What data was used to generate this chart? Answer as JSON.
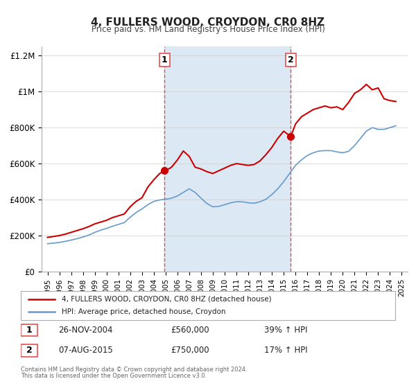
{
  "title": "4, FULLERS WOOD, CROYDON, CR0 8HZ",
  "subtitle": "Price paid vs. HM Land Registry's House Price Index (HPI)",
  "legend_line1": "4, FULLERS WOOD, CROYDON, CR0 8HZ (detached house)",
  "legend_line2": "HPI: Average price, detached house, Croydon",
  "footnote1": "Contains HM Land Registry data © Crown copyright and database right 2024.",
  "footnote2": "This data is licensed under the Open Government Licence v3.0.",
  "sale1_label": "1",
  "sale1_date": "26-NOV-2004",
  "sale1_price": "£560,000",
  "sale1_hpi": "39% ↑ HPI",
  "sale1_x": 2004.9,
  "sale1_y": 560000,
  "sale2_label": "2",
  "sale2_date": "07-AUG-2015",
  "sale2_price": "£750,000",
  "sale2_hpi": "17% ↑ HPI",
  "sale2_x": 2015.6,
  "sale2_y": 750000,
  "vline1_x": 2004.9,
  "vline2_x": 2015.6,
  "shade_color": "#dce9f5",
  "vline_color": "#e05050",
  "property_color": "#cc0000",
  "hpi_color": "#6699cc",
  "ylim": [
    0,
    1250000
  ],
  "xlim_start": 1994.5,
  "xlim_end": 2025.5,
  "ylabel_ticks": [
    0,
    200000,
    400000,
    600000,
    800000,
    1000000,
    1200000
  ],
  "ylabel_labels": [
    "£0",
    "£200K",
    "£400K",
    "£600K",
    "£800K",
    "£1M",
    "£1.2M"
  ],
  "xticks": [
    1995,
    1996,
    1997,
    1998,
    1999,
    2000,
    2001,
    2002,
    2003,
    2004,
    2005,
    2006,
    2007,
    2008,
    2009,
    2010,
    2011,
    2012,
    2013,
    2014,
    2015,
    2016,
    2017,
    2018,
    2019,
    2020,
    2021,
    2022,
    2023,
    2024,
    2025
  ],
  "property_data_x": [
    1995.0,
    1995.5,
    1996.0,
    1996.5,
    1997.0,
    1997.5,
    1998.0,
    1998.5,
    1999.0,
    1999.5,
    2000.0,
    2000.5,
    2001.0,
    2001.5,
    2002.0,
    2002.5,
    2003.0,
    2003.5,
    2004.0,
    2004.5,
    2004.9,
    2005.0,
    2005.5,
    2006.0,
    2006.5,
    2007.0,
    2007.5,
    2008.0,
    2008.5,
    2009.0,
    2009.5,
    2010.0,
    2010.5,
    2011.0,
    2011.5,
    2012.0,
    2012.5,
    2013.0,
    2013.5,
    2014.0,
    2014.5,
    2015.0,
    2015.6,
    2016.0,
    2016.5,
    2017.0,
    2017.5,
    2018.0,
    2018.5,
    2019.0,
    2019.5,
    2020.0,
    2020.5,
    2021.0,
    2021.5,
    2022.0,
    2022.5,
    2023.0,
    2023.5,
    2024.0,
    2024.5
  ],
  "property_data_y": [
    190000,
    195000,
    200000,
    208000,
    218000,
    228000,
    238000,
    250000,
    265000,
    275000,
    285000,
    300000,
    310000,
    320000,
    360000,
    390000,
    410000,
    470000,
    510000,
    545000,
    560000,
    560000,
    580000,
    620000,
    670000,
    640000,
    580000,
    570000,
    555000,
    545000,
    560000,
    575000,
    590000,
    600000,
    595000,
    590000,
    595000,
    615000,
    650000,
    690000,
    740000,
    780000,
    750000,
    820000,
    860000,
    880000,
    900000,
    910000,
    920000,
    910000,
    915000,
    900000,
    940000,
    990000,
    1010000,
    1040000,
    1010000,
    1020000,
    960000,
    950000,
    945000
  ],
  "hpi_data_x": [
    1995.0,
    1995.5,
    1996.0,
    1996.5,
    1997.0,
    1997.5,
    1998.0,
    1998.5,
    1999.0,
    1999.5,
    2000.0,
    2000.5,
    2001.0,
    2001.5,
    2002.0,
    2002.5,
    2003.0,
    2003.5,
    2004.0,
    2004.5,
    2005.0,
    2005.5,
    2006.0,
    2006.5,
    2007.0,
    2007.5,
    2008.0,
    2008.5,
    2009.0,
    2009.5,
    2010.0,
    2010.5,
    2011.0,
    2011.5,
    2012.0,
    2012.5,
    2013.0,
    2013.5,
    2014.0,
    2014.5,
    2015.0,
    2015.5,
    2016.0,
    2016.5,
    2017.0,
    2017.5,
    2018.0,
    2018.5,
    2019.0,
    2019.5,
    2020.0,
    2020.5,
    2021.0,
    2021.5,
    2022.0,
    2022.5,
    2023.0,
    2023.5,
    2024.0,
    2024.5
  ],
  "hpi_data_y": [
    155000,
    158000,
    162000,
    168000,
    175000,
    183000,
    192000,
    203000,
    218000,
    230000,
    240000,
    252000,
    262000,
    272000,
    302000,
    328000,
    348000,
    372000,
    390000,
    398000,
    402000,
    408000,
    420000,
    440000,
    460000,
    440000,
    408000,
    378000,
    360000,
    362000,
    372000,
    382000,
    388000,
    388000,
    382000,
    380000,
    388000,
    402000,
    428000,
    460000,
    500000,
    545000,
    590000,
    620000,
    645000,
    660000,
    670000,
    672000,
    672000,
    665000,
    660000,
    668000,
    700000,
    740000,
    780000,
    800000,
    790000,
    790000,
    800000,
    810000
  ]
}
